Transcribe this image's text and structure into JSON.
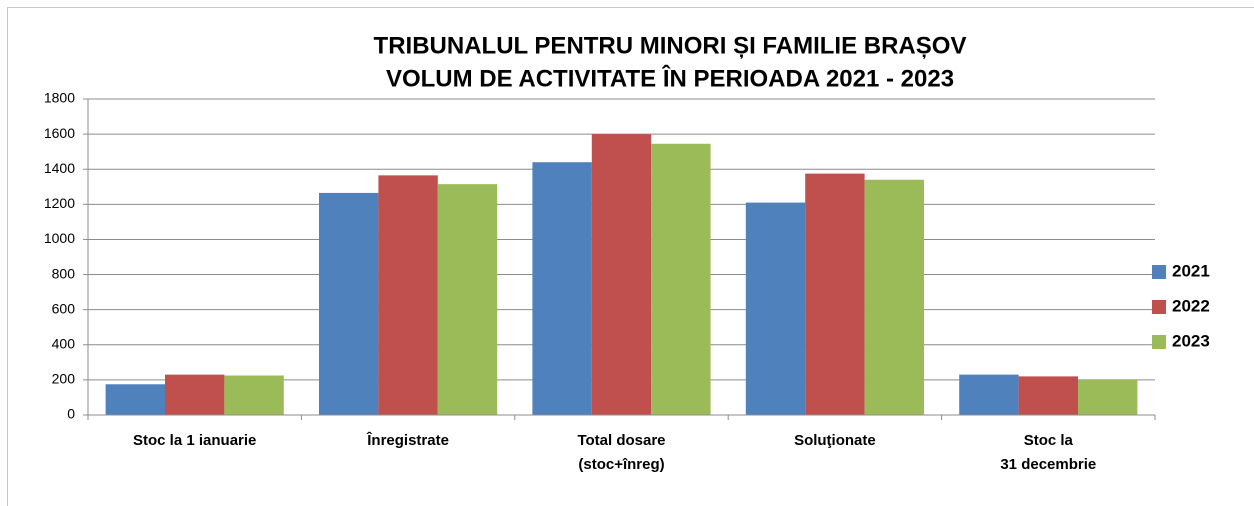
{
  "chart_data": {
    "type": "bar",
    "title": [
      "TRIBUNALUL PENTRU MINORI ȘI FAMILIE BRAȘOV",
      "VOLUM DE ACTIVITATE ÎN PERIOADA 2021 - 2023"
    ],
    "categories": [
      [
        "Stoc la 1 ianuarie"
      ],
      [
        "Înregistrate"
      ],
      [
        "Total dosare",
        "(stoc+înreg)"
      ],
      [
        "Soluţionate"
      ],
      [
        "Stoc la",
        "31 decembrie"
      ]
    ],
    "series": [
      {
        "name": "2021",
        "color": "#4f81bd",
        "values": [
          175,
          1265,
          1440,
          1210,
          230
        ]
      },
      {
        "name": "2022",
        "color": "#c0504d",
        "values": [
          230,
          1365,
          1600,
          1375,
          220
        ]
      },
      {
        "name": "2023",
        "color": "#9bbb59",
        "values": [
          225,
          1315,
          1545,
          1340,
          200
        ]
      }
    ],
    "ylim": [
      0,
      1800
    ],
    "yticks": [
      0,
      200,
      400,
      600,
      800,
      1000,
      1200,
      1400,
      1600,
      1800
    ],
    "grid": true,
    "legend": "right"
  }
}
